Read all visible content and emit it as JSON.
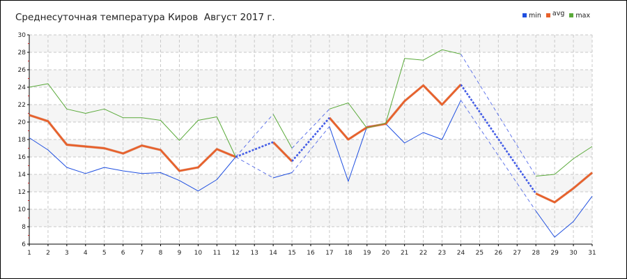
{
  "chart_data": {
    "type": "line",
    "title": "Среднесуточная температура Киров  Август 2017 г.",
    "xlabel": "",
    "ylabel": "",
    "x": [
      1,
      2,
      3,
      4,
      5,
      6,
      7,
      8,
      9,
      10,
      11,
      12,
      13,
      14,
      15,
      16,
      17,
      18,
      19,
      20,
      21,
      22,
      23,
      24,
      25,
      26,
      27,
      28,
      29,
      30,
      31
    ],
    "xlim": [
      1,
      31
    ],
    "ylim": [
      6,
      30
    ],
    "y_ticks": [
      6,
      8,
      10,
      12,
      14,
      16,
      18,
      20,
      22,
      24,
      26,
      28,
      30
    ],
    "grid": true,
    "legend": "top-right",
    "series": [
      {
        "name": "min",
        "color": "#1f4fe0",
        "values": [
          18.2,
          16.8,
          14.8,
          14.1,
          14.8,
          14.4,
          14.1,
          14.2,
          13.3,
          12.1,
          13.4,
          16.0,
          null,
          13.6,
          14.2,
          null,
          19.5,
          13.2,
          19.5,
          19.8,
          17.6,
          18.8,
          18.0,
          22.5,
          null,
          null,
          null,
          9.8,
          6.8,
          8.6,
          11.5
        ]
      },
      {
        "name": "avg",
        "color": "#e8602a",
        "values": [
          20.8,
          20.1,
          17.4,
          17.2,
          17.0,
          16.4,
          17.3,
          16.8,
          14.4,
          14.8,
          16.9,
          16.0,
          null,
          17.7,
          15.5,
          null,
          20.5,
          18.0,
          19.4,
          19.8,
          22.4,
          24.2,
          22.0,
          24.3,
          null,
          null,
          null,
          11.8,
          10.8,
          12.4,
          14.2
        ]
      },
      {
        "name": "max",
        "color": "#5aaa3a",
        "values": [
          24.0,
          24.4,
          21.5,
          21.0,
          21.5,
          20.5,
          20.5,
          20.2,
          17.9,
          20.2,
          20.6,
          16.0,
          null,
          20.9,
          17.0,
          null,
          21.5,
          22.2,
          19.3,
          19.9,
          27.3,
          27.1,
          28.3,
          27.8,
          null,
          null,
          null,
          13.8,
          14.0,
          15.8,
          17.2
        ]
      }
    ]
  }
}
